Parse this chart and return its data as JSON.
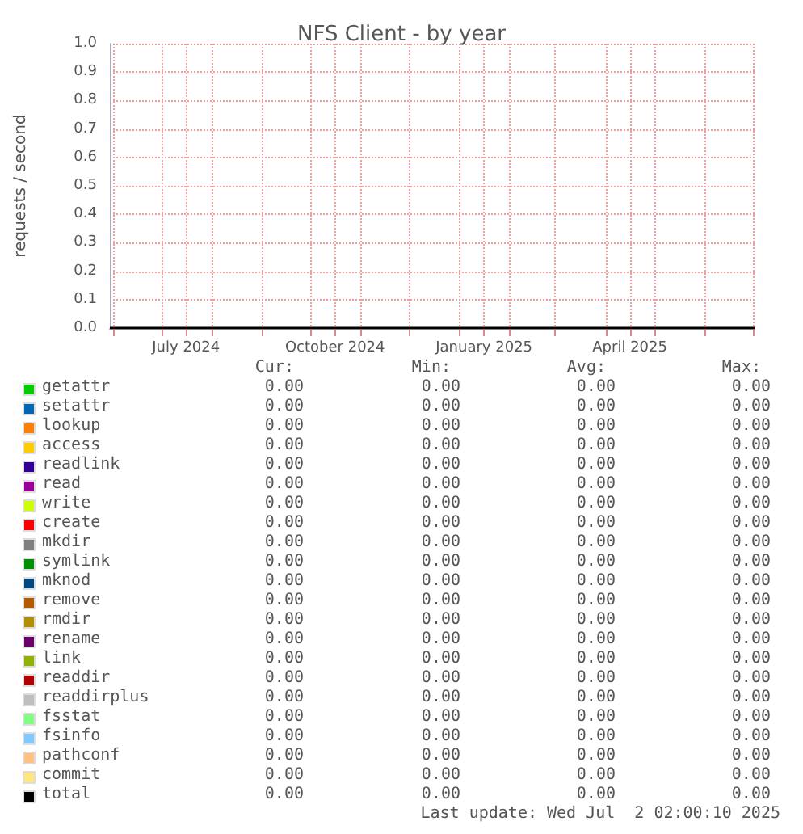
{
  "chart_data": {
    "type": "line",
    "title": "NFS Client - by year",
    "ylabel": "requests / second",
    "x": [
      "2024-05-30",
      "2025-07-02"
    ],
    "xlim": [
      "2024-05-30",
      "2025-07-02"
    ],
    "xticks": [
      {
        "value": "2024-06-01",
        "label": null
      },
      {
        "value": "2024-07-01",
        "label": null
      },
      {
        "value": "2024-07-16",
        "label": "July 2024"
      },
      {
        "value": "2024-08-01",
        "label": null
      },
      {
        "value": "2024-09-01",
        "label": null
      },
      {
        "value": "2024-10-01",
        "label": null
      },
      {
        "value": "2024-10-16",
        "label": "October 2024"
      },
      {
        "value": "2024-11-01",
        "label": null
      },
      {
        "value": "2024-12-01",
        "label": null
      },
      {
        "value": "2025-01-01",
        "label": null
      },
      {
        "value": "2025-01-16",
        "label": "January 2025"
      },
      {
        "value": "2025-02-01",
        "label": null
      },
      {
        "value": "2025-03-01",
        "label": null
      },
      {
        "value": "2025-04-01",
        "label": null
      },
      {
        "value": "2025-04-16",
        "label": "April 2025"
      },
      {
        "value": "2025-05-01",
        "label": null
      },
      {
        "value": "2025-06-01",
        "label": null
      },
      {
        "value": "2025-07-01",
        "label": null
      }
    ],
    "ylim": [
      0,
      1
    ],
    "yticks": [
      {
        "value": 0,
        "label": "0.0"
      },
      {
        "value": 0.1,
        "label": "0.1"
      },
      {
        "value": 0.2,
        "label": "0.2"
      },
      {
        "value": 0.3,
        "label": "0.3"
      },
      {
        "value": 0.4,
        "label": "0.4"
      },
      {
        "value": 0.5,
        "label": "0.5"
      },
      {
        "value": 0.6,
        "label": "0.6"
      },
      {
        "value": 0.7,
        "label": "0.7"
      },
      {
        "value": 0.8,
        "label": "0.8"
      },
      {
        "value": 0.9,
        "label": "0.9"
      },
      {
        "value": 1,
        "label": "1.0"
      }
    ],
    "grid": true,
    "legend": "bottom",
    "marker": "none",
    "line_style": "solid",
    "annotations": [
      "Cur:",
      "Min:",
      "Avg:",
      "Max:",
      "Last update: Wed Jul  2 02:00:10 2025",
      "0.00",
      "0.00",
      "0.00",
      "0.00",
      "0.00",
      "0.00",
      "0.00",
      "0.00",
      "0.00",
      "0.00",
      "0.00",
      "0.00",
      "0.00",
      "0.00",
      "0.00",
      "0.00",
      "0.00",
      "0.00",
      "0.00",
      "0.00",
      "0.00",
      "0.00",
      "0.00",
      "0.00",
      "0.00",
      "0.00",
      "0.00",
      "0.00",
      "0.00",
      "0.00",
      "0.00",
      "0.00",
      "0.00",
      "0.00",
      "0.00",
      "0.00",
      "0.00",
      "0.00",
      "0.00",
      "0.00",
      "0.00",
      "0.00",
      "0.00",
      "0.00",
      "0.00",
      "0.00",
      "0.00",
      "0.00",
      "0.00",
      "0.00",
      "0.00",
      "0.00",
      "0.00",
      "0.00",
      "0.00",
      "0.00",
      "0.00",
      "0.00",
      "0.00",
      "0.00",
      "0.00",
      "0.00",
      "0.00",
      "0.00",
      "0.00",
      "0.00",
      "0.00",
      "0.00",
      "0.00",
      "0.00",
      "0.00",
      "0.00",
      "0.00",
      "0.00",
      "0.00",
      "0.00",
      "0.00",
      "0.00",
      "0.00",
      "0.00",
      "0.00",
      "0.00",
      "0.00",
      "0.00",
      "0.00",
      "0.00",
      "0.00",
      "0.00"
    ],
    "series": [
      {
        "name": "getattr",
        "color": "#00cc00",
        "values": [
          null,
          null
        ]
      },
      {
        "name": "setattr",
        "color": "#0066b3",
        "values": [
          null,
          null
        ]
      },
      {
        "name": "lookup",
        "color": "#ff8000",
        "values": [
          null,
          null
        ]
      },
      {
        "name": "access",
        "color": "#ffcc00",
        "values": [
          null,
          null
        ]
      },
      {
        "name": "readlink",
        "color": "#330099",
        "values": [
          null,
          null
        ]
      },
      {
        "name": "read",
        "color": "#990099",
        "values": [
          null,
          null
        ]
      },
      {
        "name": "write",
        "color": "#ccff00",
        "values": [
          null,
          null
        ]
      },
      {
        "name": "create",
        "color": "#ff0000",
        "values": [
          null,
          null
        ]
      },
      {
        "name": "mkdir",
        "color": "#808080",
        "values": [
          null,
          null
        ]
      },
      {
        "name": "symlink",
        "color": "#008f00",
        "values": [
          null,
          null
        ]
      },
      {
        "name": "mknod",
        "color": "#00487d",
        "values": [
          null,
          null
        ]
      },
      {
        "name": "remove",
        "color": "#b35a00",
        "values": [
          null,
          null
        ]
      },
      {
        "name": "rmdir",
        "color": "#b38f00",
        "values": [
          null,
          null
        ]
      },
      {
        "name": "rename",
        "color": "#6b006b",
        "values": [
          null,
          null
        ]
      },
      {
        "name": "link",
        "color": "#8fb300",
        "values": [
          null,
          null
        ]
      },
      {
        "name": "readdir",
        "color": "#b30000",
        "values": [
          null,
          null
        ]
      },
      {
        "name": "readdirplus",
        "color": "#bebebe",
        "values": [
          null,
          null
        ]
      },
      {
        "name": "fsstat",
        "color": "#80ff80",
        "values": [
          null,
          null
        ]
      },
      {
        "name": "fsinfo",
        "color": "#80c9ff",
        "values": [
          null,
          null
        ]
      },
      {
        "name": "pathconf",
        "color": "#ffc080",
        "values": [
          null,
          null
        ]
      },
      {
        "name": "commit",
        "color": "#ffe680",
        "values": [
          null,
          null
        ]
      },
      {
        "name": "total",
        "color": "#000000",
        "values": [
          0,
          0
        ]
      }
    ]
  }
}
